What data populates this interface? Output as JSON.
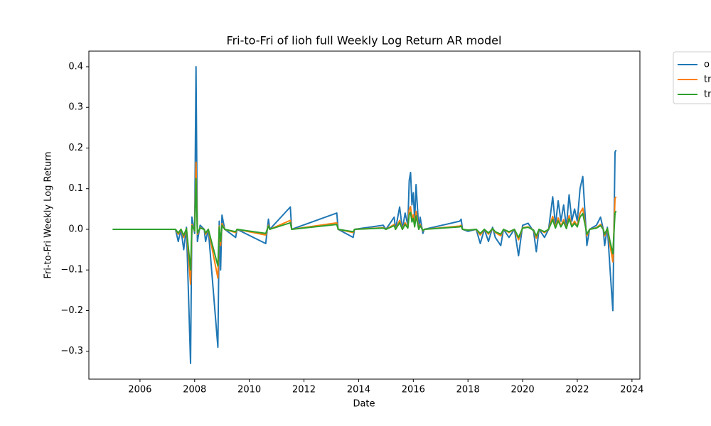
{
  "chart_data": {
    "type": "line",
    "title": "Fri-to-Fri of lioh full Weekly Log Return AR model",
    "xlabel": "Date",
    "ylabel": "Fri-to-Fri Weekly Log Return",
    "x": [
      2005.0,
      2007.3,
      2007.4,
      2007.5,
      2007.6,
      2007.7,
      2007.85,
      2007.9,
      2008.0,
      2008.05,
      2008.1,
      2008.2,
      2008.35,
      2008.4,
      2008.5,
      2008.85,
      2008.9,
      2008.95,
      2009.0,
      2009.1,
      2009.5,
      2009.55,
      2010.6,
      2010.7,
      2010.75,
      2011.5,
      2011.55,
      2013.2,
      2013.25,
      2013.8,
      2013.85,
      2014.9,
      2015.0,
      2015.3,
      2015.35,
      2015.5,
      2015.6,
      2015.7,
      2015.8,
      2015.85,
      2015.9,
      2015.95,
      2016.0,
      2016.05,
      2016.1,
      2016.2,
      2016.25,
      2016.35,
      2016.4,
      2017.7,
      2017.75,
      2017.8,
      2018.0,
      2018.3,
      2018.45,
      2018.6,
      2018.75,
      2018.9,
      2019.0,
      2019.2,
      2019.3,
      2019.5,
      2019.7,
      2019.85,
      2020.0,
      2020.2,
      2020.4,
      2020.5,
      2020.6,
      2020.8,
      2020.95,
      2021.1,
      2021.2,
      2021.3,
      2021.4,
      2021.5,
      2021.6,
      2021.7,
      2021.8,
      2021.9,
      2022.0,
      2022.1,
      2022.2,
      2022.3,
      2022.35,
      2022.45,
      2022.7,
      2022.85,
      2022.95,
      2023.0,
      2023.1,
      2023.2,
      2023.3,
      2023.38,
      2023.42
    ],
    "series": [
      {
        "name": "o",
        "color": "#1f77b4",
        "values": [
          0,
          0,
          -0.03,
          0,
          -0.05,
          0.005,
          -0.33,
          0.03,
          -0.01,
          0.4,
          -0.03,
          0.01,
          0,
          -0.03,
          0,
          -0.29,
          0.02,
          -0.1,
          0.035,
          0,
          -0.02,
          0,
          -0.035,
          0.025,
          0,
          0.055,
          0,
          0.04,
          0,
          -0.02,
          0,
          0.01,
          0,
          0.03,
          0,
          0.055,
          0,
          0.04,
          0.01,
          0.12,
          0.14,
          0.06,
          0.09,
          0.02,
          0.11,
          0,
          0.03,
          -0.01,
          0,
          0.02,
          0.025,
          0,
          -0.005,
          0,
          -0.035,
          0,
          -0.03,
          0.005,
          -0.02,
          -0.04,
          0,
          -0.02,
          0,
          -0.065,
          0.01,
          0.015,
          -0.005,
          -0.055,
          0,
          -0.02,
          0,
          0.08,
          0.01,
          0.07,
          0.02,
          0.06,
          0.005,
          0.085,
          0.02,
          0.05,
          0.02,
          0.1,
          0.13,
          0.02,
          -0.04,
          0,
          0.01,
          0.03,
          0,
          -0.04,
          0.005,
          -0.1,
          -0.2,
          0.19,
          0.195
        ]
      },
      {
        "name": "tr",
        "color": "#ff7f0e",
        "values": [
          0,
          0,
          -0.012,
          0,
          -0.02,
          0.002,
          -0.135,
          0.012,
          -0.004,
          0.165,
          -0.012,
          0.004,
          0,
          -0.012,
          0,
          -0.12,
          0.008,
          -0.04,
          0.014,
          0,
          -0.008,
          0,
          -0.014,
          0.01,
          0,
          0.022,
          0,
          0.016,
          0,
          -0.008,
          0,
          0.004,
          0,
          0.012,
          0,
          0.022,
          0,
          0.016,
          0.004,
          0.048,
          0.056,
          0.024,
          0.036,
          0.008,
          0.044,
          0,
          0.012,
          -0.004,
          0,
          0.008,
          0.01,
          0,
          -0.002,
          0,
          -0.014,
          0,
          -0.012,
          0.002,
          -0.008,
          -0.016,
          0,
          -0.008,
          0,
          -0.026,
          0.004,
          0.006,
          -0.002,
          -0.022,
          0,
          -0.008,
          0,
          0.032,
          0.004,
          0.028,
          0.008,
          0.024,
          0.002,
          0.034,
          0.008,
          0.02,
          0.008,
          0.04,
          0.052,
          0.008,
          -0.016,
          0,
          0.004,
          0.012,
          0,
          -0.016,
          0.002,
          -0.04,
          -0.08,
          0.076,
          0.08
        ]
      },
      {
        "name": "tr",
        "color": "#2ca02c",
        "values": [
          0,
          0,
          -0.009,
          0,
          -0.015,
          0.002,
          -0.1,
          0.009,
          -0.003,
          0.125,
          -0.009,
          0.003,
          0,
          -0.009,
          0,
          -0.09,
          0.006,
          -0.03,
          0.01,
          0,
          -0.006,
          0,
          -0.01,
          0.008,
          0,
          0.016,
          0,
          0.012,
          0,
          -0.006,
          0,
          0.003,
          0,
          0.009,
          0,
          0.016,
          0,
          0.012,
          0.003,
          0.036,
          0.042,
          0.018,
          0.027,
          0.006,
          0.033,
          0,
          0.009,
          -0.003,
          0,
          0.006,
          0.008,
          0,
          -0.002,
          0,
          -0.01,
          0,
          -0.009,
          0.002,
          -0.006,
          -0.012,
          0,
          -0.006,
          0,
          -0.02,
          0.003,
          0.005,
          -0.002,
          -0.016,
          0,
          -0.006,
          0,
          0.024,
          0.003,
          0.021,
          0.006,
          0.018,
          0.002,
          0.026,
          0.006,
          0.015,
          0.006,
          0.03,
          0.039,
          0.006,
          -0.012,
          0,
          0.003,
          0.009,
          0,
          -0.012,
          0.002,
          -0.03,
          -0.06,
          0.04,
          0.045
        ]
      }
    ],
    "xlim": [
      2004.13,
      2024.29
    ],
    "xticks": [
      2006,
      2008,
      2010,
      2012,
      2014,
      2016,
      2018,
      2020,
      2022,
      2024
    ],
    "ylim": [
      -0.3686,
      0.4384
    ],
    "yticks": [
      {
        "value": -0.3,
        "label": "−0.3"
      },
      {
        "value": -0.2,
        "label": "−0.2"
      },
      {
        "value": -0.1,
        "label": "−0.1"
      },
      {
        "value": 0,
        "label": "0.0"
      },
      0.1,
      0.2,
      0.3,
      0.4
    ],
    "grid": false,
    "legend": "outside upper right"
  }
}
